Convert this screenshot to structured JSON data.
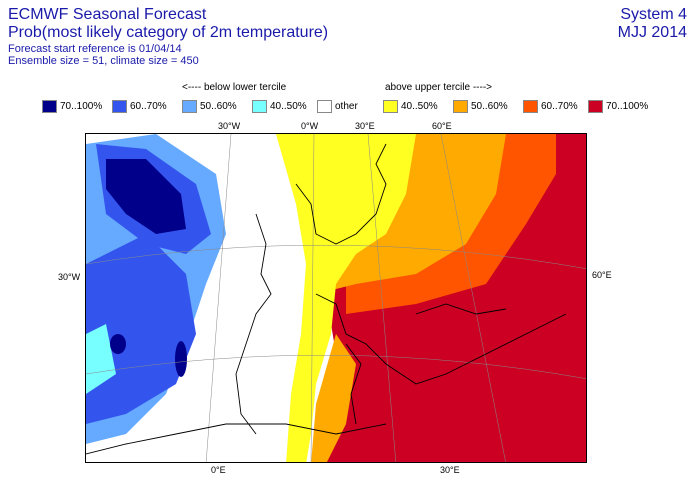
{
  "header": {
    "line1": "ECMWF Seasonal Forecast",
    "line2": "Prob(most likely category of 2m temperature)",
    "line3": "Forecast start reference is 01/04/14",
    "line4": "Ensemble size = 51, climate size = 450",
    "system": "System 4",
    "season": "MJJ 2014"
  },
  "legend": {
    "below_label": "<---- below lower tercile",
    "above_label": "above upper tercile ---->",
    "items": [
      {
        "label": "70..100%",
        "color": "#00008b"
      },
      {
        "label": "60..70%",
        "color": "#3355ee"
      },
      {
        "label": "50..60%",
        "color": "#66aaff"
      },
      {
        "label": "40..50%",
        "color": "#77ffff"
      },
      {
        "label": "other",
        "color": "#ffffff"
      },
      {
        "label": "40..50%",
        "color": "#ffff22"
      },
      {
        "label": "50..60%",
        "color": "#ffaa00"
      },
      {
        "label": "60..70%",
        "color": "#ff5500"
      },
      {
        "label": "70..100%",
        "color": "#cc0022"
      }
    ]
  },
  "map": {
    "top_labels": [
      "30°W",
      "0°W",
      "30°E",
      "60°E"
    ],
    "left_label": "30°W",
    "right_label": "60°E",
    "bottom_labels": [
      "0°E",
      "30°E"
    ]
  }
}
